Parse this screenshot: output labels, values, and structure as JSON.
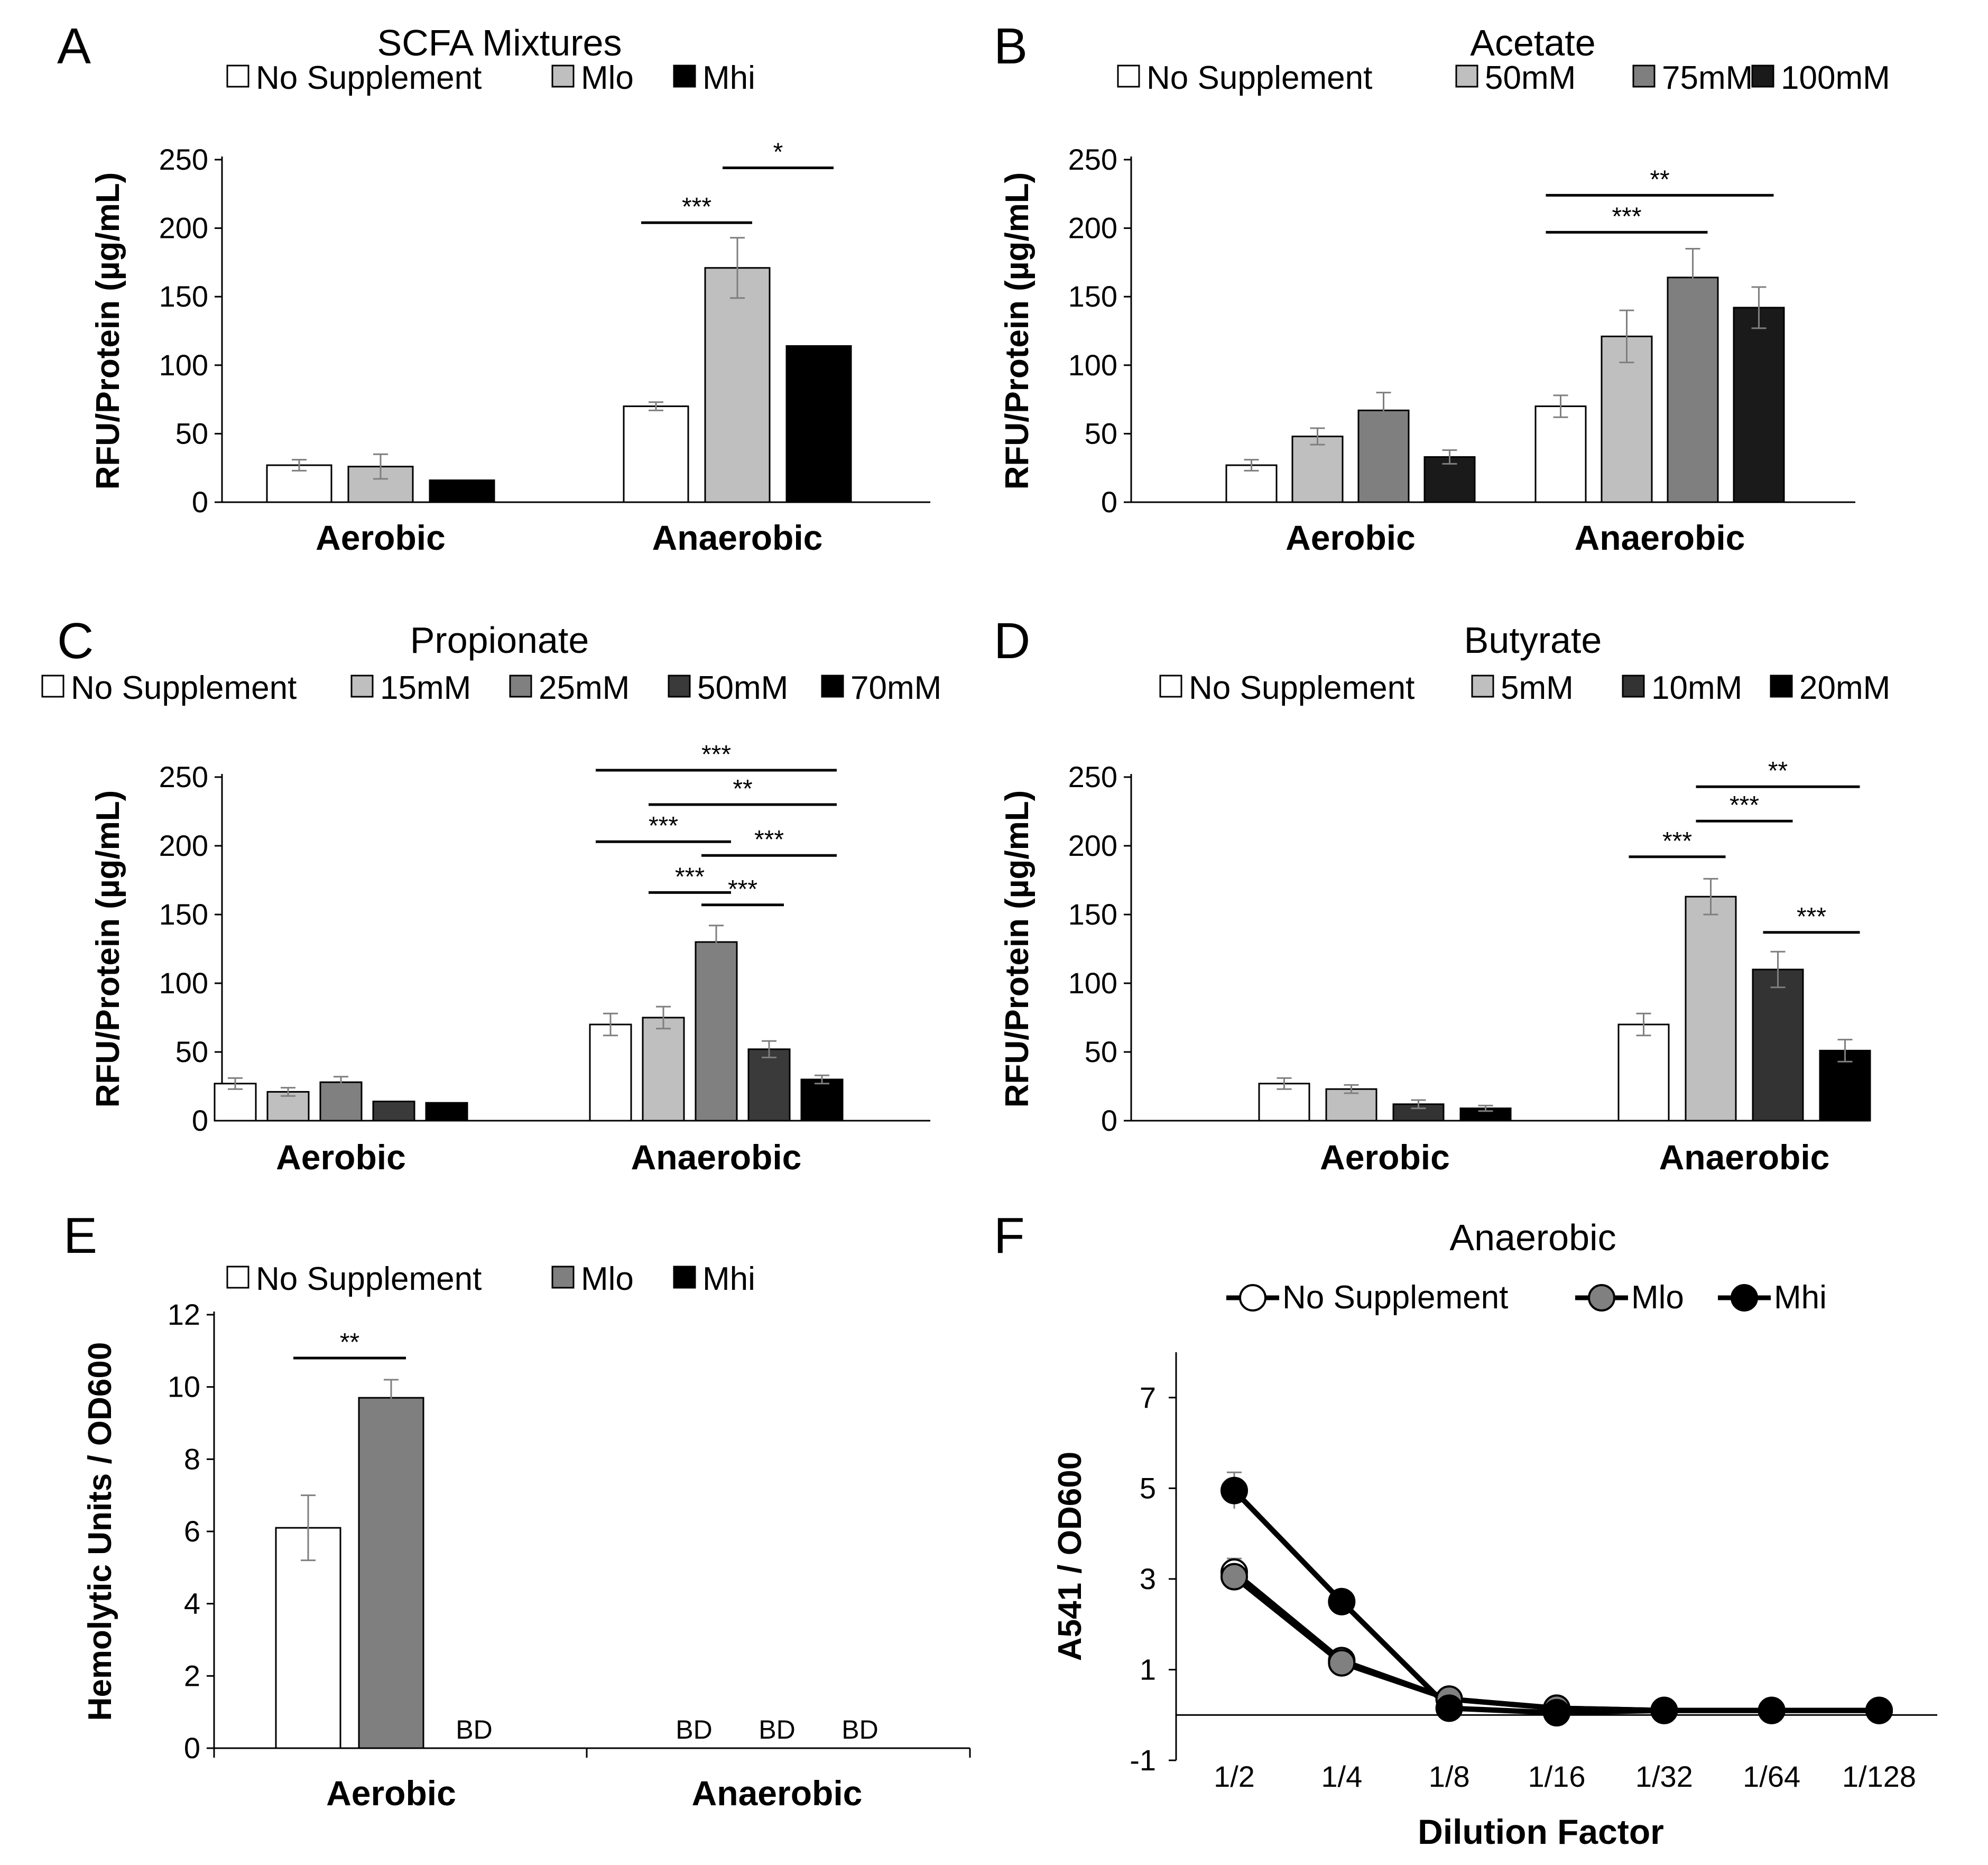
{
  "figure": {
    "panel_letters": [
      "A",
      "B",
      "C",
      "D",
      "E",
      "F"
    ]
  },
  "chart_data": [
    {
      "panel": "A",
      "type": "bar",
      "title": "SCFA Mixtures",
      "ylabel": "RFU/Protein (µg/mL)",
      "xlabel": "",
      "ylim": [
        0,
        250
      ],
      "yticks": [
        0,
        50,
        100,
        150,
        200,
        250
      ],
      "categories": [
        "Aerobic",
        "Anaerobic"
      ],
      "series": [
        {
          "name": "No Supplement",
          "color": "#ffffff",
          "values": [
            27,
            70
          ],
          "errors": [
            4,
            3
          ]
        },
        {
          "name": "Mlo",
          "color": "#bfbfbf",
          "values": [
            26,
            171
          ],
          "errors": [
            9,
            22
          ]
        },
        {
          "name": "Mhi",
          "color": "#000000",
          "values": [
            16,
            114
          ],
          "errors": [
            0,
            0
          ]
        }
      ],
      "significance": [
        {
          "label": "***",
          "group": 1,
          "from": 0,
          "to": 1,
          "y": 204
        },
        {
          "label": "*",
          "group": 1,
          "from": 1,
          "to": 2,
          "y": 244
        }
      ]
    },
    {
      "panel": "B",
      "type": "bar",
      "title": "Acetate",
      "ylabel": "RFU/Protein (µg/mL)",
      "xlabel": "",
      "ylim": [
        0,
        250
      ],
      "yticks": [
        0,
        50,
        100,
        150,
        200,
        250
      ],
      "categories": [
        "Aerobic",
        "Anaerobic"
      ],
      "series": [
        {
          "name": "No Supplement",
          "color": "#ffffff",
          "values": [
            27,
            70
          ],
          "errors": [
            4,
            8
          ]
        },
        {
          "name": "50mM",
          "color": "#bfbfbf",
          "values": [
            48,
            121
          ],
          "errors": [
            6,
            19
          ]
        },
        {
          "name": "75mM",
          "color": "#7f7f7f",
          "values": [
            67,
            164
          ],
          "errors": [
            13,
            21
          ]
        },
        {
          "name": "100mM",
          "color": "#1a1a1a",
          "values": [
            33,
            142
          ],
          "errors": [
            5,
            15
          ]
        }
      ],
      "significance": [
        {
          "label": "***",
          "group": 1,
          "from": 0,
          "to": 2,
          "y": 197
        },
        {
          "label": "**",
          "group": 1,
          "from": 0,
          "to": 3,
          "y": 224
        }
      ]
    },
    {
      "panel": "C",
      "type": "bar",
      "title": "Propionate",
      "ylabel": "RFU/Protein (µg/mL)",
      "xlabel": "",
      "ylim": [
        0,
        250
      ],
      "yticks": [
        0,
        50,
        100,
        150,
        200,
        250
      ],
      "categories": [
        "Aerobic",
        "Anaerobic"
      ],
      "series": [
        {
          "name": "No Supplement",
          "color": "#ffffff",
          "values": [
            27,
            70
          ],
          "errors": [
            4,
            8
          ]
        },
        {
          "name": "15mM",
          "color": "#bfbfbf",
          "values": [
            21,
            75
          ],
          "errors": [
            3,
            8
          ]
        },
        {
          "name": "25mM",
          "color": "#808080",
          "values": [
            28,
            130
          ],
          "errors": [
            4,
            12
          ]
        },
        {
          "name": "50mM",
          "color": "#3a3a3a",
          "values": [
            14,
            52
          ],
          "errors": [
            0,
            6
          ]
        },
        {
          "name": "70mM",
          "color": "#000000",
          "values": [
            13,
            30
          ],
          "errors": [
            0,
            3
          ]
        }
      ],
      "significance": [
        {
          "label": "***",
          "group": 1,
          "from": 0,
          "to": 4,
          "y": 255
        },
        {
          "label": "**",
          "group": 1,
          "from": 1,
          "to": 4,
          "y": 230
        },
        {
          "label": "***",
          "group": 1,
          "from": 0,
          "to": 2,
          "y": 203
        },
        {
          "label": "***",
          "group": 1,
          "from": 2,
          "to": 4,
          "y": 193
        },
        {
          "label": "***",
          "group": 1,
          "from": 1,
          "to": 2,
          "y": 166
        },
        {
          "label": "***",
          "group": 1,
          "from": 2,
          "to": 3,
          "y": 157
        }
      ]
    },
    {
      "panel": "D",
      "type": "bar",
      "title": "Butyrate",
      "ylabel": "RFU/Protein (µg/mL)",
      "xlabel": "",
      "ylim": [
        0,
        250
      ],
      "yticks": [
        0,
        50,
        100,
        150,
        200,
        250
      ],
      "categories": [
        "Aerobic",
        "Anaerobic"
      ],
      "series": [
        {
          "name": "No Supplement",
          "color": "#ffffff",
          "values": [
            27,
            70
          ],
          "errors": [
            4,
            8
          ]
        },
        {
          "name": "5mM",
          "color": "#bfbfbf",
          "values": [
            23,
            163
          ],
          "errors": [
            3,
            13
          ]
        },
        {
          "name": "10mM",
          "color": "#333333",
          "values": [
            12,
            110
          ],
          "errors": [
            3,
            13
          ]
        },
        {
          "name": "20mM",
          "color": "#000000",
          "values": [
            9,
            51
          ],
          "errors": [
            2,
            8
          ]
        }
      ],
      "significance": [
        {
          "label": "**",
          "group": 1,
          "from": 1,
          "to": 3,
          "y": 243
        },
        {
          "label": "***",
          "group": 1,
          "from": 1,
          "to": 2,
          "y": 218
        },
        {
          "label": "***",
          "group": 1,
          "from": 0,
          "to": 1,
          "y": 192
        },
        {
          "label": "***",
          "group": 1,
          "from": 2,
          "to": 3,
          "y": 137
        }
      ]
    },
    {
      "panel": "E",
      "type": "bar",
      "title": "",
      "ylabel": "Hemolytic Units / OD600",
      "xlabel": "",
      "ylim": [
        0,
        12
      ],
      "yticks": [
        0,
        2,
        4,
        6,
        8,
        10,
        12
      ],
      "categories": [
        "Aerobic",
        "Anaerobic"
      ],
      "series": [
        {
          "name": "No Supplement",
          "color": "#ffffff",
          "values": [
            6.1,
            null
          ],
          "errors": [
            0.9,
            null
          ]
        },
        {
          "name": "Mlo",
          "color": "#7f7f7f",
          "values": [
            9.7,
            null
          ],
          "errors": [
            0.5,
            null
          ]
        },
        {
          "name": "Mhi",
          "color": "#000000",
          "values": [
            null,
            null
          ],
          "errors": [
            null,
            null
          ]
        }
      ],
      "bd_label": "BD",
      "bd_positions": [
        {
          "group": 0,
          "series": 2
        },
        {
          "group": 1,
          "series": 0
        },
        {
          "group": 1,
          "series": 1
        },
        {
          "group": 1,
          "series": 2
        }
      ],
      "significance": [
        {
          "label": "**",
          "group": 0,
          "from": 0,
          "to": 1,
          "y": 10.8
        }
      ]
    },
    {
      "panel": "F",
      "type": "line",
      "title": "Anaerobic",
      "ylabel": "A541 / OD600",
      "xlabel": "Dilution Factor",
      "ylim": [
        -1,
        8
      ],
      "yticks": [
        -1,
        1,
        3,
        5,
        7
      ],
      "categories": [
        "1/2",
        "1/4",
        "1/8",
        "1/16",
        "1/32",
        "1/64",
        "1/128"
      ],
      "series": [
        {
          "name": "No Supplement",
          "fill": "#ffffff",
          "values": [
            3.15,
            1.2,
            0.35,
            0.15,
            0.1,
            0.1,
            0.1
          ],
          "errors": [
            0.3,
            0.15,
            0.05,
            0.05,
            0.05,
            0.05,
            0.05
          ]
        },
        {
          "name": "Mlo",
          "fill": "#808080",
          "values": [
            3.05,
            1.15,
            0.35,
            0.15,
            0.1,
            0.1,
            0.1
          ],
          "errors": [
            0.25,
            0.15,
            0.05,
            0.05,
            0.05,
            0.05,
            0.05
          ]
        },
        {
          "name": "Mhi",
          "fill": "#000000",
          "values": [
            4.95,
            2.5,
            0.15,
            0.05,
            0.1,
            0.1,
            0.1
          ],
          "errors": [
            0.4,
            0.1,
            0.05,
            0.05,
            0.05,
            0.05,
            0.05
          ]
        }
      ]
    }
  ]
}
